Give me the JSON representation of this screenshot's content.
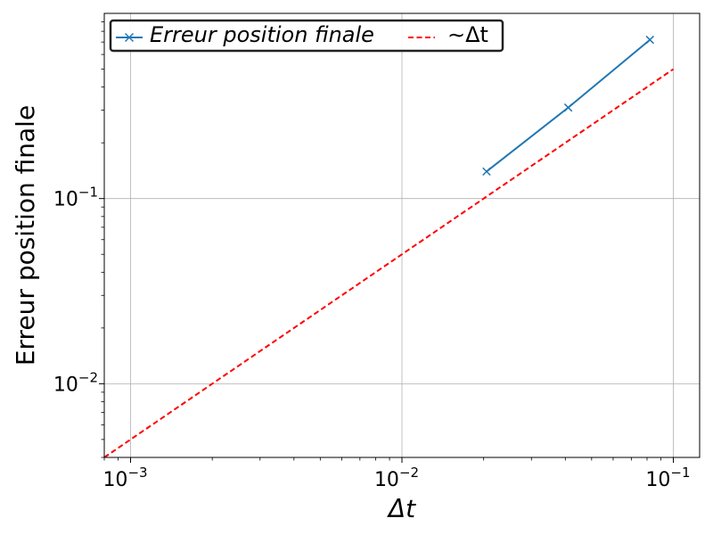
{
  "chart_data": {
    "type": "line",
    "x_scale": "log",
    "y_scale": "log",
    "xlim": [
      0.0008,
      0.125
    ],
    "ylim": [
      0.004,
      1.0
    ],
    "xlabel": "Δt",
    "ylabel": "Erreur position finale",
    "grid": true,
    "legend_position": "top-left",
    "x_ticks": [
      {
        "base": "10",
        "exp": "−3",
        "value": 0.001
      },
      {
        "base": "10",
        "exp": "−2",
        "value": 0.01
      },
      {
        "base": "10",
        "exp": "−1",
        "value": 0.1
      }
    ],
    "y_ticks": [
      {
        "base": "10",
        "exp": "−2",
        "value": 0.01
      },
      {
        "base": "10",
        "exp": "−1",
        "value": 0.1
      }
    ],
    "series": [
      {
        "name": "Erreur position finale",
        "color": "#1f77b4",
        "style": "solid",
        "marker": "x",
        "x": [
          0.0205,
          0.041,
          0.082
        ],
        "y": [
          0.14,
          0.31,
          0.72
        ]
      },
      {
        "name": "∼Δt",
        "color": "#ff0000",
        "style": "dashed",
        "marker": "none",
        "x": [
          0.0008,
          0.1
        ],
        "y": [
          0.004,
          0.5
        ]
      }
    ]
  }
}
